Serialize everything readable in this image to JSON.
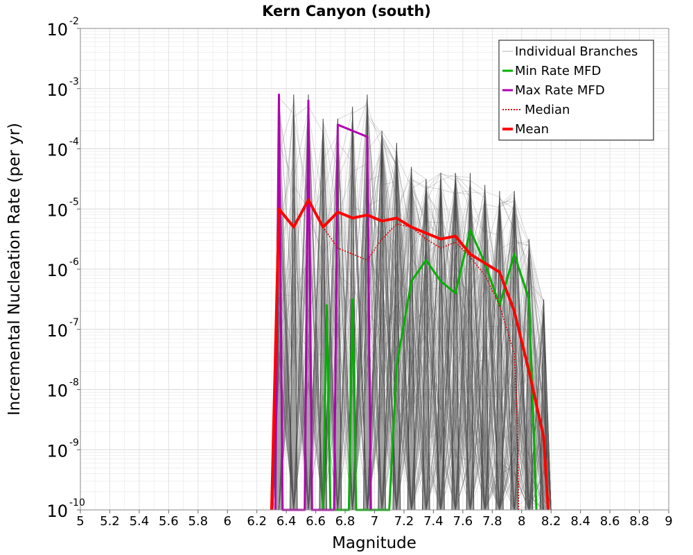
{
  "chart_data": {
    "type": "line",
    "title": "Kern Canyon (south)",
    "xlabel": "Magnitude",
    "ylabel": "Incremental Nucleation Rate (per yr)",
    "xlim": [
      5,
      9
    ],
    "ylim_log10": [
      -10,
      -2
    ],
    "x_ticks": [
      "5",
      "5.2",
      "5.4",
      "5.6",
      "5.8",
      "6",
      "6.2",
      "6.4",
      "6.6",
      "6.8",
      "7",
      "7.2",
      "7.4",
      "7.6",
      "7.8",
      "8",
      "8.2",
      "8.4",
      "8.6",
      "8.8",
      "9"
    ],
    "y_ticks": [
      {
        "base": "10",
        "exp": "-2",
        "value": -2
      },
      {
        "base": "10",
        "exp": "-3",
        "value": -3
      },
      {
        "base": "10",
        "exp": "-4",
        "value": -4
      },
      {
        "base": "10",
        "exp": "-5",
        "value": -5
      },
      {
        "base": "10",
        "exp": "-6",
        "value": -6
      },
      {
        "base": "10",
        "exp": "-7",
        "value": -7
      },
      {
        "base": "10",
        "exp": "-8",
        "value": -8
      },
      {
        "base": "10",
        "exp": "-9",
        "value": -9
      },
      {
        "base": "10",
        "exp": "-10",
        "value": -10
      }
    ],
    "grid": true,
    "legend_position": "top-right",
    "legend": [
      {
        "label": "Individual Branches",
        "color": "#b0b0b0",
        "style": "thin"
      },
      {
        "label": "Min Rate MFD",
        "color": "#00b000",
        "style": "solid"
      },
      {
        "label": "Max Rate MFD",
        "color": "#b000b0",
        "style": "solid"
      },
      {
        "label": "Median",
        "color": "#dd0000",
        "style": "dotted"
      },
      {
        "label": "Mean",
        "color": "#ff0000",
        "style": "thick"
      }
    ],
    "series": [
      {
        "name": "Min Rate MFD",
        "color": "#00b000",
        "x": [
          6.65,
          6.675,
          6.7,
          6.825,
          6.85,
          6.875,
          7.1,
          7.15,
          7.25,
          7.35,
          7.45,
          7.55,
          7.65,
          7.75,
          7.85,
          7.95,
          8.05,
          8.1
        ],
        "log10y": [
          -10,
          -6.6,
          -10,
          -10,
          -6.5,
          -10,
          -10,
          -7.6,
          -6.2,
          -5.85,
          -6.2,
          -6.4,
          -5.35,
          -5.9,
          -6.6,
          -5.75,
          -6.5,
          -10
        ]
      },
      {
        "name": "Max Rate MFD",
        "color": "#b000b0",
        "x": [
          6.325,
          6.35,
          6.375,
          6.525,
          6.55,
          6.575,
          6.725,
          6.75,
          6.95,
          6.975
        ],
        "log10y": [
          -10,
          -3.1,
          -10,
          -10,
          -3.2,
          -10,
          -10,
          -3.6,
          -3.8,
          -10
        ]
      },
      {
        "name": "Median",
        "color": "#dd0000",
        "x": [
          6.3,
          6.35,
          6.45,
          6.55,
          6.65,
          6.75,
          6.85,
          6.95,
          7.05,
          7.15,
          7.25,
          7.35,
          7.45,
          7.55,
          7.65,
          7.75,
          7.85,
          7.95,
          7.97,
          7.98
        ],
        "log10y": [
          -10,
          -5.0,
          -5.3,
          -4.85,
          -5.3,
          -5.65,
          -5.75,
          -5.85,
          -5.5,
          -5.25,
          -5.3,
          -5.5,
          -5.65,
          -5.55,
          -5.8,
          -6.1,
          -6.6,
          -7.4,
          -8.5,
          -10
        ]
      },
      {
        "name": "Mean",
        "color": "#ff0000",
        "x": [
          6.3,
          6.35,
          6.45,
          6.55,
          6.65,
          6.75,
          6.85,
          6.95,
          7.05,
          7.15,
          7.25,
          7.35,
          7.45,
          7.55,
          7.65,
          7.75,
          7.85,
          7.95,
          8.05,
          8.15,
          8.18
        ],
        "log10y": [
          -10,
          -5.0,
          -5.3,
          -4.85,
          -5.3,
          -5.05,
          -5.15,
          -5.1,
          -5.2,
          -5.15,
          -5.3,
          -5.4,
          -5.5,
          -5.45,
          -5.75,
          -5.9,
          -6.05,
          -6.7,
          -7.7,
          -8.8,
          -10
        ]
      }
    ],
    "branch_envelope": {
      "peaks_x": [
        6.35,
        6.45,
        6.55,
        6.65,
        6.75,
        6.85,
        6.95,
        7.05,
        7.15,
        7.25,
        7.35,
        7.45,
        7.55,
        7.65,
        7.75,
        7.85,
        7.95,
        8.05,
        8.15
      ],
      "peak_log10y": [
        -3.1,
        -3.1,
        -3.1,
        -3.5,
        -3.5,
        -3.3,
        -3.1,
        -3.7,
        -3.9,
        -4.3,
        -4.5,
        -4.4,
        -4.4,
        -4.4,
        -4.6,
        -4.7,
        -4.7,
        -5.5,
        -6.5
      ]
    }
  }
}
